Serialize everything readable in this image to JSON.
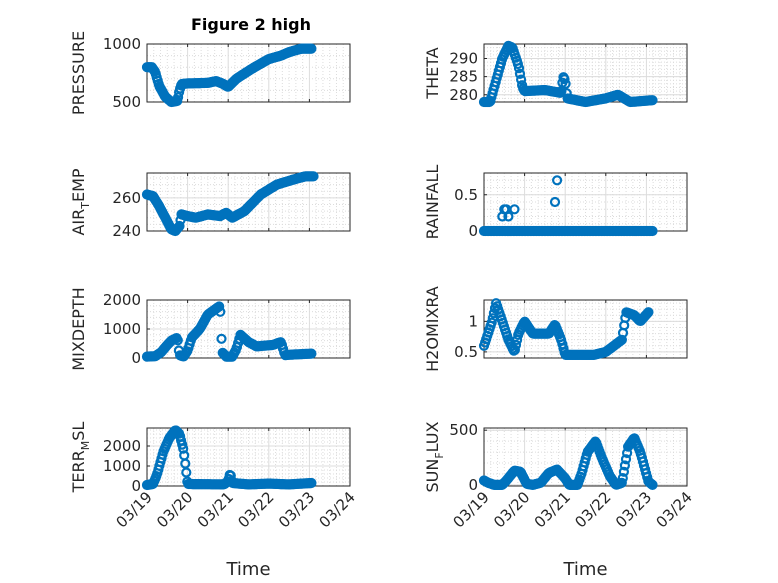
{
  "figure": {
    "title": "Figure 2 high",
    "marker_color": "#0072bd",
    "x_ticks": [
      "03/19",
      "03/20",
      "03/21",
      "03/22",
      "03/23",
      "03/24"
    ],
    "x_label": "Time"
  },
  "chart_data": [
    {
      "type": "scatter",
      "name": "pressure",
      "ylabel": "PRESSURE",
      "title": "Figure 2 high",
      "xlabel": "",
      "ylim": [
        500,
        1000
      ],
      "yticks": [
        500,
        1000
      ],
      "xlim": [
        0,
        5
      ],
      "x_ticks": [
        "03/19",
        "03/20",
        "03/21",
        "03/22",
        "03/23",
        "03/24"
      ],
      "grid": true,
      "keypoints": [
        [
          0.0,
          800
        ],
        [
          0.12,
          800
        ],
        [
          0.2,
          760
        ],
        [
          0.3,
          640
        ],
        [
          0.45,
          545
        ],
        [
          0.6,
          500
        ],
        [
          0.75,
          510
        ],
        [
          0.8,
          600
        ],
        [
          0.85,
          655
        ],
        [
          1.0,
          660
        ],
        [
          1.5,
          665
        ],
        [
          1.7,
          680
        ],
        [
          1.85,
          660
        ],
        [
          2.0,
          630
        ],
        [
          2.2,
          700
        ],
        [
          2.6,
          790
        ],
        [
          3.0,
          870
        ],
        [
          3.3,
          900
        ],
        [
          3.5,
          930
        ],
        [
          3.8,
          960
        ],
        [
          4.05,
          960
        ]
      ],
      "count": 170
    },
    {
      "type": "scatter",
      "name": "theta",
      "ylabel": "THETA",
      "title": "",
      "xlabel": "",
      "ylim": [
        278,
        294
      ],
      "yticks": [
        280,
        285,
        290
      ],
      "xlim": [
        0,
        5
      ],
      "x_ticks": [
        "03/19",
        "03/20",
        "03/21",
        "03/22",
        "03/23",
        "03/24"
      ],
      "grid": true,
      "keypoints": [
        [
          0.0,
          278
        ],
        [
          0.15,
          278
        ],
        [
          0.3,
          284
        ],
        [
          0.45,
          290
        ],
        [
          0.6,
          293.5
        ],
        [
          0.7,
          293
        ],
        [
          0.85,
          288
        ],
        [
          0.95,
          282
        ],
        [
          1.0,
          281
        ],
        [
          1.5,
          281.3
        ],
        [
          1.9,
          280.5
        ],
        [
          1.95,
          285
        ],
        [
          2.0,
          284
        ],
        [
          2.05,
          279
        ],
        [
          2.5,
          278
        ],
        [
          3.0,
          279
        ],
        [
          3.3,
          280
        ],
        [
          3.6,
          278
        ],
        [
          4.15,
          278.5
        ]
      ],
      "count": 160
    },
    {
      "type": "scatter",
      "name": "air_temp",
      "ylabel": "AIRTEMP",
      "ylabel_main": "AIR",
      "ylabel_sub": "T",
      "ylabel_rest": "EMP",
      "title": "",
      "xlabel": "",
      "ylim": [
        240,
        275
      ],
      "yticks": [
        240,
        260
      ],
      "xlim": [
        0,
        5
      ],
      "x_ticks": [
        "03/19",
        "03/20",
        "03/21",
        "03/22",
        "03/23",
        "03/24"
      ],
      "grid": true,
      "keypoints": [
        [
          0.0,
          262
        ],
        [
          0.15,
          261
        ],
        [
          0.3,
          255
        ],
        [
          0.45,
          248
        ],
        [
          0.6,
          241
        ],
        [
          0.7,
          240
        ],
        [
          0.8,
          243
        ],
        [
          0.85,
          250
        ],
        [
          1.0,
          249
        ],
        [
          1.2,
          248
        ],
        [
          1.5,
          250
        ],
        [
          1.8,
          249
        ],
        [
          1.95,
          251
        ],
        [
          2.1,
          248
        ],
        [
          2.4,
          252
        ],
        [
          2.8,
          262
        ],
        [
          3.2,
          268
        ],
        [
          3.6,
          271
        ],
        [
          3.9,
          273
        ],
        [
          4.1,
          273
        ]
      ],
      "count": 165
    },
    {
      "type": "scatter",
      "name": "rainfall",
      "ylabel": "RAINFALL",
      "title": "",
      "xlabel": "",
      "ylim": [
        0,
        0.8
      ],
      "yticks": [
        0,
        0.5
      ],
      "xlim": [
        0,
        5
      ],
      "x_ticks": [
        "03/19",
        "03/20",
        "03/21",
        "03/22",
        "03/23",
        "03/24"
      ],
      "grid": true,
      "baseline_x": [
        0.0,
        4.15
      ],
      "baseline_count": 110,
      "points": [
        [
          0.45,
          0.2
        ],
        [
          0.5,
          0.3
        ],
        [
          0.55,
          0.3
        ],
        [
          0.6,
          0.2
        ],
        [
          0.75,
          0.3
        ],
        [
          1.75,
          0.4
        ],
        [
          1.8,
          0.7
        ]
      ]
    },
    {
      "type": "scatter",
      "name": "mixdepth",
      "ylabel": "MIXDEPTH",
      "title": "",
      "xlabel": "",
      "ylim": [
        0,
        2000
      ],
      "yticks": [
        0,
        1000,
        2000
      ],
      "xlim": [
        0,
        5
      ],
      "x_ticks": [
        "03/19",
        "03/20",
        "03/21",
        "03/22",
        "03/23",
        "03/24"
      ],
      "grid": true,
      "keypoints": [
        [
          0.0,
          50
        ],
        [
          0.2,
          60
        ],
        [
          0.35,
          200
        ],
        [
          0.5,
          450
        ],
        [
          0.6,
          600
        ],
        [
          0.75,
          700
        ],
        [
          0.8,
          100
        ],
        [
          0.9,
          50
        ],
        [
          1.0,
          250
        ],
        [
          1.1,
          700
        ],
        [
          1.3,
          1000
        ],
        [
          1.5,
          1500
        ],
        [
          1.8,
          1800
        ],
        [
          1.85,
          200
        ],
        [
          1.95,
          50
        ],
        [
          2.1,
          50
        ],
        [
          2.2,
          300
        ],
        [
          2.3,
          800
        ],
        [
          2.5,
          550
        ],
        [
          2.7,
          400
        ],
        [
          3.1,
          450
        ],
        [
          3.3,
          550
        ],
        [
          3.4,
          100
        ],
        [
          3.6,
          120
        ],
        [
          4.05,
          150
        ]
      ],
      "count": 140
    },
    {
      "type": "scatter",
      "name": "h2omixra",
      "ylabel": "H2OMIXRA",
      "title": "",
      "xlabel": "",
      "ylim": [
        0.4,
        1.35
      ],
      "yticks": [
        0.5,
        1
      ],
      "xlim": [
        0,
        5
      ],
      "x_ticks": [
        "03/19",
        "03/20",
        "03/21",
        "03/22",
        "03/23",
        "03/24"
      ],
      "grid": true,
      "keypoints": [
        [
          0.0,
          0.6
        ],
        [
          0.1,
          0.8
        ],
        [
          0.2,
          1.0
        ],
        [
          0.3,
          1.3
        ],
        [
          0.45,
          1.0
        ],
        [
          0.6,
          0.7
        ],
        [
          0.75,
          0.5
        ],
        [
          0.85,
          0.8
        ],
        [
          1.0,
          1.0
        ],
        [
          1.2,
          0.8
        ],
        [
          1.6,
          0.8
        ],
        [
          1.75,
          0.95
        ],
        [
          1.9,
          0.7
        ],
        [
          2.0,
          0.45
        ],
        [
          2.4,
          0.45
        ],
        [
          2.7,
          0.45
        ],
        [
          3.0,
          0.5
        ],
        [
          3.2,
          0.6
        ],
        [
          3.4,
          0.7
        ],
        [
          3.5,
          1.15
        ],
        [
          3.7,
          1.1
        ],
        [
          3.85,
          1.0
        ],
        [
          4.05,
          1.15
        ]
      ],
      "count": 150
    },
    {
      "type": "scatter",
      "name": "terr_msl",
      "ylabel": "TERRMSL",
      "ylabel_main": "TERR",
      "ylabel_sub": "M",
      "ylabel_rest": "SL",
      "title": "",
      "xlabel": "Time",
      "ylim": [
        0,
        2900
      ],
      "yticks": [
        0,
        1000,
        2000
      ],
      "xlim": [
        0,
        5
      ],
      "x_ticks": [
        "03/19",
        "03/20",
        "03/21",
        "03/22",
        "03/23",
        "03/24"
      ],
      "grid": true,
      "keypoints": [
        [
          0.0,
          50
        ],
        [
          0.15,
          100
        ],
        [
          0.25,
          600
        ],
        [
          0.4,
          1700
        ],
        [
          0.55,
          2400
        ],
        [
          0.7,
          2800
        ],
        [
          0.8,
          2600
        ],
        [
          0.9,
          1800
        ],
        [
          0.95,
          1000
        ],
        [
          1.0,
          100
        ],
        [
          1.9,
          80
        ],
        [
          2.0,
          250
        ],
        [
          2.05,
          650
        ],
        [
          2.1,
          150
        ],
        [
          2.5,
          80
        ],
        [
          3.0,
          120
        ],
        [
          3.5,
          80
        ],
        [
          4.05,
          150
        ]
      ],
      "count": 160
    },
    {
      "type": "scatter",
      "name": "sun_flux",
      "ylabel": "SUNFLUX",
      "ylabel_main": "SUN",
      "ylabel_sub": "F",
      "ylabel_rest": "LUX",
      "title": "",
      "xlabel": "Time",
      "ylim": [
        -10,
        520
      ],
      "yticks": [
        0,
        500
      ],
      "xlim": [
        0,
        5
      ],
      "x_ticks": [
        "03/19",
        "03/20",
        "03/21",
        "03/22",
        "03/23",
        "03/24"
      ],
      "grid": true,
      "keypoints": [
        [
          0.0,
          40
        ],
        [
          0.1,
          20
        ],
        [
          0.25,
          0
        ],
        [
          0.45,
          0
        ],
        [
          0.55,
          40
        ],
        [
          0.75,
          130
        ],
        [
          0.9,
          120
        ],
        [
          1.05,
          10
        ],
        [
          1.2,
          0
        ],
        [
          1.4,
          20
        ],
        [
          1.6,
          110
        ],
        [
          1.8,
          140
        ],
        [
          2.0,
          60
        ],
        [
          2.1,
          0
        ],
        [
          2.3,
          0
        ],
        [
          2.4,
          100
        ],
        [
          2.55,
          300
        ],
        [
          2.75,
          400
        ],
        [
          2.9,
          250
        ],
        [
          3.1,
          80
        ],
        [
          3.25,
          0
        ],
        [
          3.4,
          20
        ],
        [
          3.55,
          350
        ],
        [
          3.7,
          430
        ],
        [
          3.85,
          300
        ],
        [
          4.05,
          30
        ],
        [
          4.15,
          0
        ]
      ],
      "count": 160
    }
  ]
}
